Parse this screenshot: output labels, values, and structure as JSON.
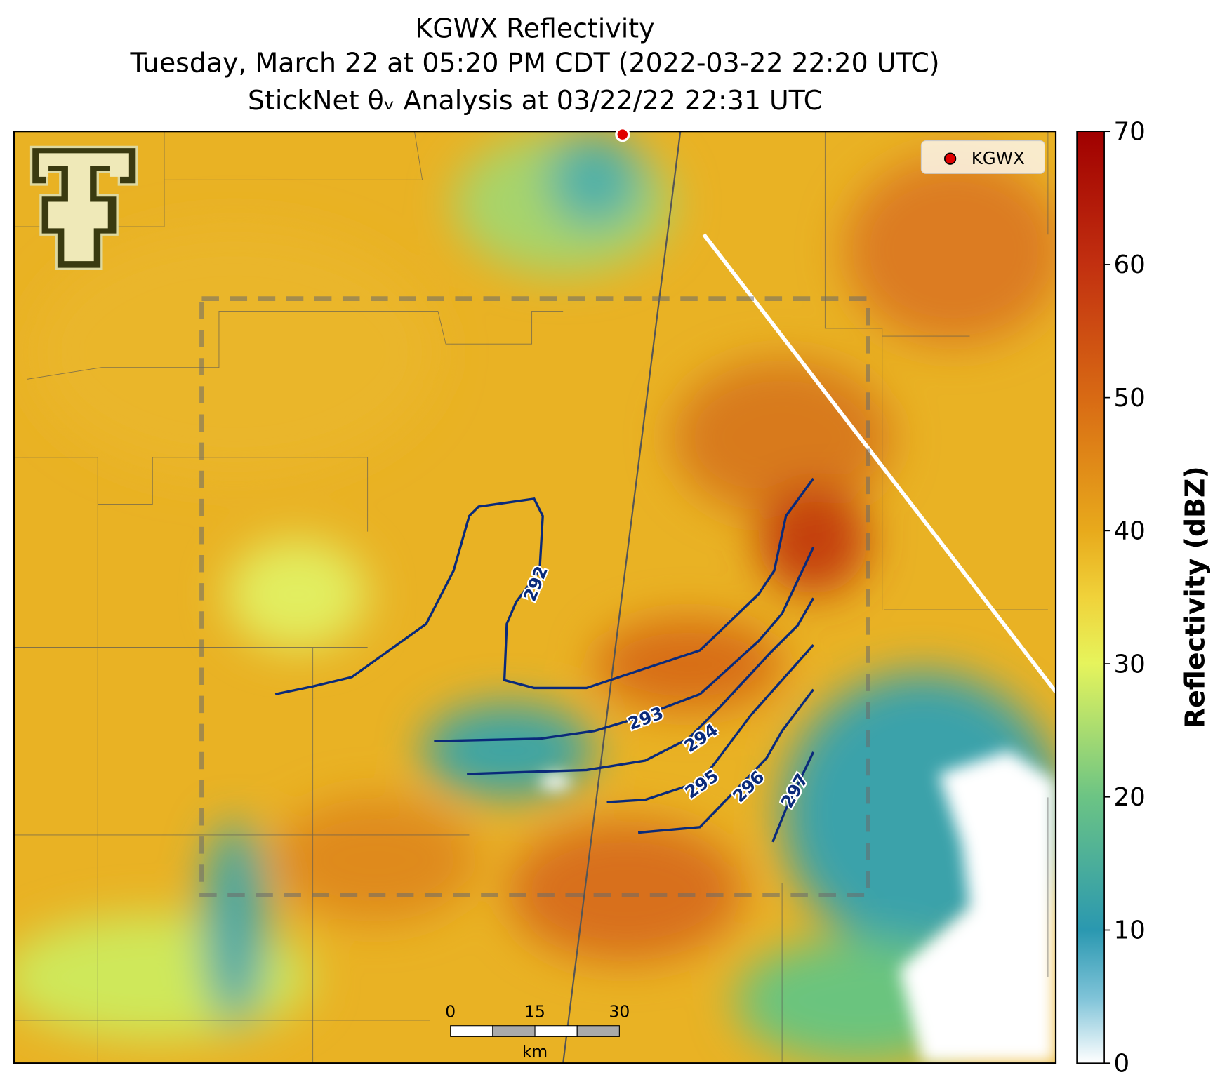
{
  "title": [
    "KGWX Reflectivity",
    "Tuesday, March 22 at 05:20 PM CDT (2022-03-22 22:20 UTC)",
    "StickNet θᵥ Analysis at 03/22/22 22:31 UTC"
  ],
  "legend": "KGWX",
  "contours": [
    292,
    293,
    294,
    295,
    296,
    297
  ],
  "scale_bar": {
    "ticks": [
      0,
      15,
      30
    ],
    "unit": "km"
  },
  "colorbar": {
    "label": "Reflectivity (dBZ)",
    "lim": [
      0,
      70
    ],
    "ticks": [
      0,
      10,
      20,
      30,
      40,
      50,
      60,
      70
    ]
  }
}
